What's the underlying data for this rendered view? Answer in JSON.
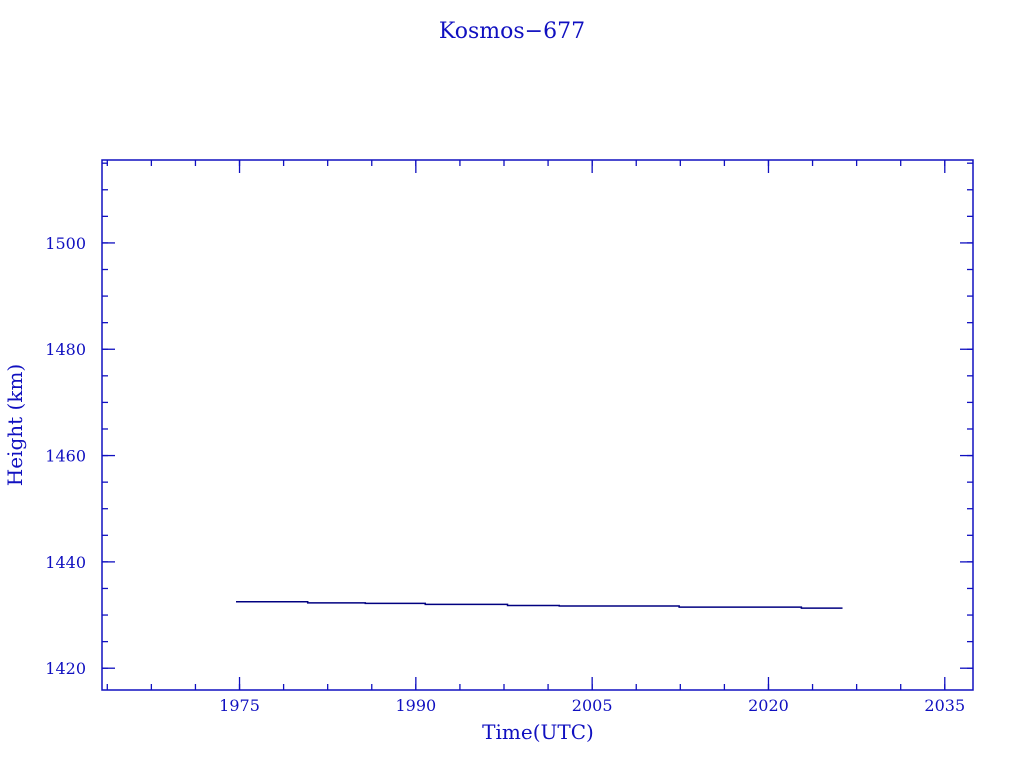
{
  "chart_data": {
    "type": "line",
    "title": "Kosmos−677",
    "xlabel": "Time(UTC)",
    "ylabel": "Height (km)",
    "xlim": [
      1963.3,
      2037.4
    ],
    "ylim": [
      1415.9,
      1515.6
    ],
    "xticks": [
      1975,
      1990,
      2005,
      2020,
      2035
    ],
    "yticks": [
      1420,
      1440,
      1460,
      1480,
      1500
    ],
    "x_minor_step": 3.75,
    "y_minor_step": 5,
    "grid": false,
    "step": true,
    "colors": {
      "axis": "#1010c0",
      "line": "#000080",
      "text": "#1010c0"
    },
    "series": [
      {
        "x": [
          1974.7,
          1980.8,
          1985.7,
          1990.8,
          1997.8,
          2002.2,
          2012.4,
          2022.8,
          2026.3
        ],
        "y": [
          1432.5,
          1432.3,
          1432.2,
          1432.0,
          1431.8,
          1431.7,
          1431.5,
          1431.3,
          1431.2
        ]
      }
    ]
  }
}
